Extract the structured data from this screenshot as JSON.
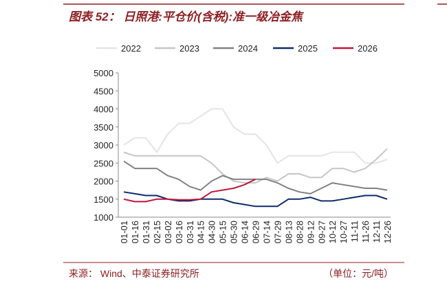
{
  "chart_data": {
    "type": "line",
    "title": "图表 52： 日照港:平仓价(含税):准一级冶金焦",
    "source": "来源：  Wind、中泰证券研究所",
    "unit": "（单位：元/吨）",
    "categories": [
      "01-01",
      "01-16",
      "01-31",
      "02-15",
      "03-02",
      "03-16",
      "03-31",
      "04-15",
      "04-30",
      "05-15",
      "05-30",
      "06-14",
      "06-29",
      "07-14",
      "07-29",
      "08-13",
      "08-28",
      "09-12",
      "09-27",
      "10-12",
      "10-27",
      "11-11",
      "11-26",
      "12-11",
      "12-26"
    ],
    "series": [
      {
        "name": "2022",
        "color": "#e4e4e4",
        "values": [
          3000,
          3200,
          3200,
          2800,
          3300,
          3600,
          3600,
          3800,
          4000,
          4000,
          3500,
          3300,
          3300,
          3000,
          2500,
          2700,
          2700,
          2700,
          2700,
          2800,
          2800,
          2800,
          2500,
          2500,
          2600
        ]
      },
      {
        "name": "2023",
        "color": "#c6c6c6",
        "values": [
          2800,
          2700,
          2700,
          2700,
          2700,
          2700,
          2700,
          2700,
          2500,
          2200,
          2000,
          1950,
          1950,
          2100,
          2000,
          2200,
          2200,
          2100,
          2100,
          2350,
          2350,
          2250,
          2350,
          2600,
          2900
        ]
      },
      {
        "name": "2024",
        "color": "#808080",
        "values": [
          2550,
          2350,
          2350,
          2350,
          2150,
          2050,
          1850,
          1750,
          2000,
          2150,
          2050,
          2050,
          2050,
          2050,
          1950,
          1800,
          1700,
          1650,
          1800,
          1950,
          1900,
          1850,
          1800,
          1800,
          1750
        ]
      },
      {
        "name": "2025",
        "color": "#0c2a6b",
        "values": [
          1700,
          1650,
          1600,
          1600,
          1500,
          1450,
          1450,
          1500,
          1500,
          1500,
          1400,
          1350,
          1300,
          1300,
          1300,
          1500,
          1500,
          1550,
          1450,
          1450,
          1500,
          1550,
          1600,
          1600,
          1500
        ]
      },
      {
        "name": "2026",
        "color": "#c0143c",
        "values": [
          1500,
          1430,
          1430,
          1500,
          1500,
          1480,
          1480,
          1500,
          1700,
          1750,
          1800,
          1900,
          2050,
          null,
          null,
          null,
          null,
          null,
          null,
          null,
          null,
          null,
          null,
          null,
          null
        ]
      }
    ],
    "ylim": [
      1000,
      5000
    ],
    "yticks": [
      1000,
      1500,
      2000,
      2500,
      3000,
      3500,
      4000,
      4500,
      5000
    ],
    "legend": "top"
  }
}
